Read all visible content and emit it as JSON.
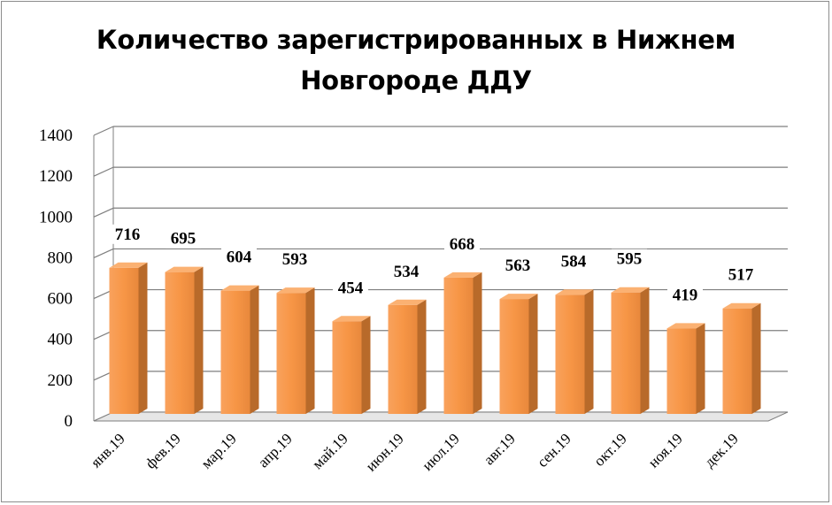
{
  "chart_data": {
    "type": "bar",
    "title_lines": [
      "Количество зарегистрированных в Нижнем",
      "Новгороде ДДУ"
    ],
    "categories": [
      "янв.19",
      "фев.19",
      "мар.19",
      "апр.19",
      "май.19",
      "июн.19",
      "июл.19",
      "авг.19",
      "сен.19",
      "окт.19",
      "ноя.19",
      "дек.19"
    ],
    "values": [
      716,
      695,
      604,
      593,
      454,
      534,
      668,
      563,
      584,
      595,
      419,
      517
    ],
    "ylim": [
      0,
      1400
    ],
    "yticks": [
      0,
      200,
      400,
      600,
      800,
      1000,
      1200,
      1400
    ],
    "grid": true,
    "bar_color": "#f79646",
    "style": "3d-column",
    "data_labels": true
  }
}
